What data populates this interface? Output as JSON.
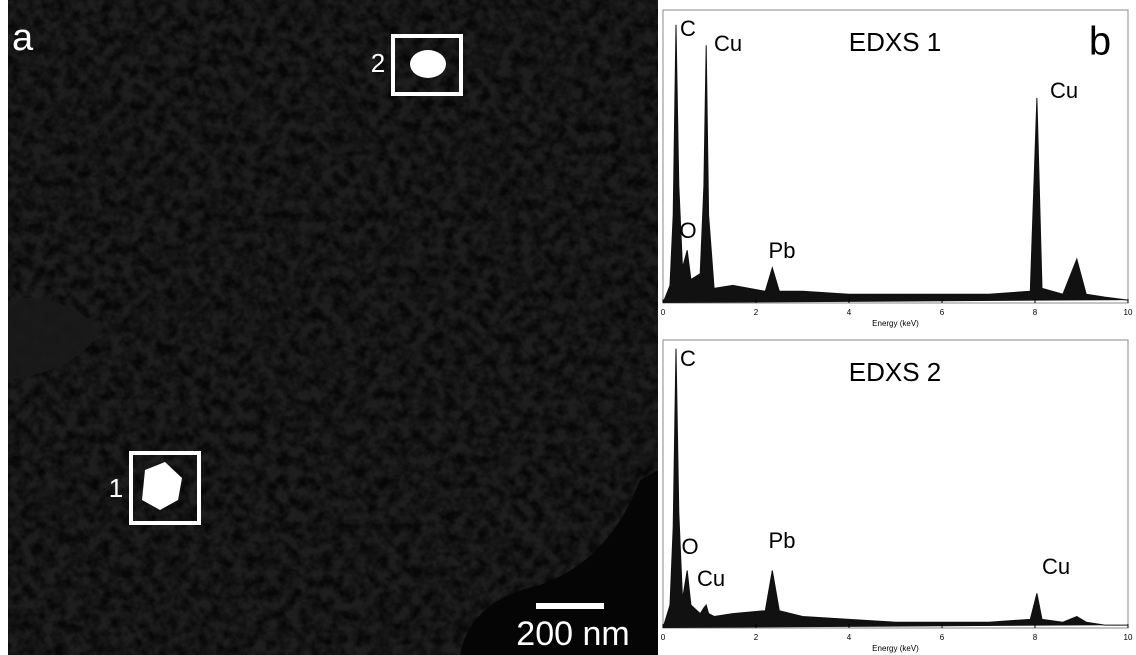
{
  "panel_a": {
    "label": "a",
    "regions": [
      "1",
      "2"
    ],
    "scale_bar": "200 nm"
  },
  "panel_b_label": "b",
  "chart_data": [
    {
      "type": "area",
      "title": "EDXS 1",
      "x_label": "Energy (keV)",
      "x": [
        0,
        0.15,
        0.22,
        0.28,
        0.34,
        0.42,
        0.52,
        0.6,
        0.8,
        0.88,
        0.93,
        0.98,
        1.1,
        1.5,
        2.2,
        2.35,
        2.5,
        3,
        4,
        5,
        6,
        7,
        7.9,
        8.04,
        8.15,
        8.6,
        8.9,
        9.1,
        9.5,
        10
      ],
      "series": [
        {
          "name": "EDXS 1",
          "color": "#111111",
          "values": [
            0,
            6,
            30,
            95,
            40,
            12,
            18,
            8,
            10,
            40,
            88,
            30,
            5,
            6,
            4,
            12,
            4,
            4,
            3,
            3,
            3,
            3,
            4,
            70,
            5,
            3,
            15,
            3,
            2,
            1
          ]
        }
      ],
      "annotations": [
        "C",
        "Cu",
        "O",
        "Pb",
        "Cu"
      ],
      "xlim": [
        0,
        10
      ],
      "ylim": [
        0,
        100
      ],
      "xticks": [
        0,
        2,
        4,
        6,
        8,
        10
      ]
    },
    {
      "type": "area",
      "title": "EDXS 2",
      "x_label": "Energy (keV)",
      "x": [
        0,
        0.15,
        0.22,
        0.28,
        0.34,
        0.42,
        0.52,
        0.6,
        0.8,
        0.88,
        0.93,
        0.98,
        1.1,
        1.5,
        2.2,
        2.35,
        2.5,
        3,
        4,
        5,
        6,
        7,
        7.9,
        8.04,
        8.15,
        8.6,
        8.9,
        9.1,
        9.5,
        10
      ],
      "series": [
        {
          "name": "EDXS 2",
          "color": "#111111",
          "values": [
            0,
            8,
            35,
            97,
            40,
            10,
            20,
            8,
            5,
            7,
            8,
            5,
            4,
            5,
            6,
            20,
            6,
            4,
            3,
            2,
            2,
            2,
            3,
            12,
            3,
            2,
            4,
            2,
            1,
            1
          ]
        }
      ],
      "annotations": [
        "C",
        "O",
        "Cu",
        "Pb",
        "Cu"
      ],
      "xlim": [
        0,
        10
      ],
      "ylim": [
        0,
        100
      ],
      "xticks": [
        0,
        2,
        4,
        6,
        8,
        10
      ]
    }
  ]
}
